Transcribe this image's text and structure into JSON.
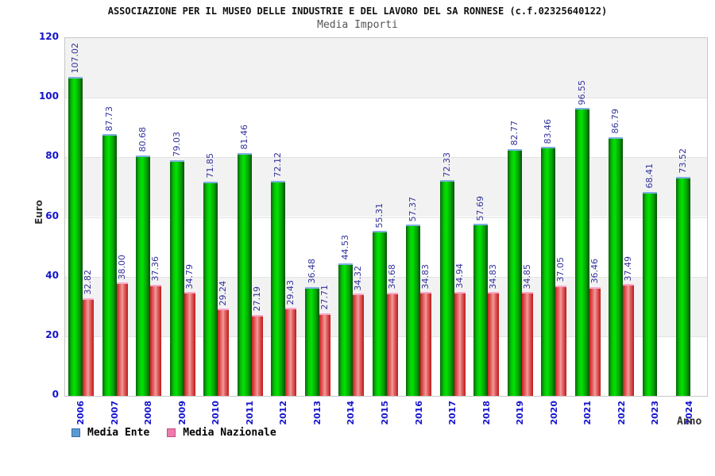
{
  "header": {
    "title": "ASSOCIAZIONE PER IL MUSEO DELLE INDUSTRIE E DEL LAVORO DEL SA RONNESE (c.f.02325640122)",
    "subtitle": "Media Importi"
  },
  "axes": {
    "y_label": "Euro",
    "x_label": "Anno",
    "y_ticks": [
      "0",
      "20",
      "40",
      "60",
      "80",
      "100",
      "120"
    ]
  },
  "legend": {
    "items": [
      {
        "label": "Media Ente",
        "swatch_color": "#5b9bd5",
        "swatch_border": "#3a6ea5"
      },
      {
        "label": "Media Nazionale",
        "swatch_color": "#ee7bae",
        "swatch_border": "#c05080"
      }
    ]
  },
  "colors": {
    "bar_ente_main": "#00dd00",
    "bar_ente_edge": "#056605",
    "bar_ente_cap": "#82aee2",
    "bar_nazionale_main": "#f0a0a0",
    "bar_nazionale_edge": "#cc1f1f",
    "bar_nazionale_cap": "#f8a8ca",
    "tick_label": "#1414cc",
    "value_label": "#32329e",
    "band_gray": "#f2f2f2",
    "band_white": "#ffffff",
    "plot_border": "#c8c8c8"
  },
  "chart_data": {
    "type": "bar",
    "title": "Media Importi",
    "xlabel": "Anno",
    "ylabel": "Euro",
    "ylim": [
      0,
      120
    ],
    "grid": "horizontal-bands-every-20",
    "legend_position": "bottom",
    "categories": [
      "2006",
      "2007",
      "2008",
      "2009",
      "2010",
      "2011",
      "2012",
      "2013",
      "2014",
      "2015",
      "2016",
      "2017",
      "2018",
      "2019",
      "2020",
      "2021",
      "2022",
      "2023",
      "2024"
    ],
    "series": [
      {
        "name": "Media Ente",
        "values": [
          107.02,
          87.73,
          80.68,
          79.03,
          71.85,
          81.46,
          72.12,
          36.48,
          44.53,
          55.31,
          57.37,
          72.33,
          57.69,
          82.77,
          83.46,
          96.55,
          86.79,
          68.41,
          73.52
        ]
      },
      {
        "name": "Media Nazionale",
        "values": [
          32.82,
          38.0,
          37.36,
          34.79,
          29.24,
          27.19,
          29.43,
          27.71,
          34.32,
          34.68,
          34.83,
          34.94,
          34.83,
          34.85,
          37.05,
          36.46,
          37.49,
          null,
          null
        ]
      }
    ]
  }
}
